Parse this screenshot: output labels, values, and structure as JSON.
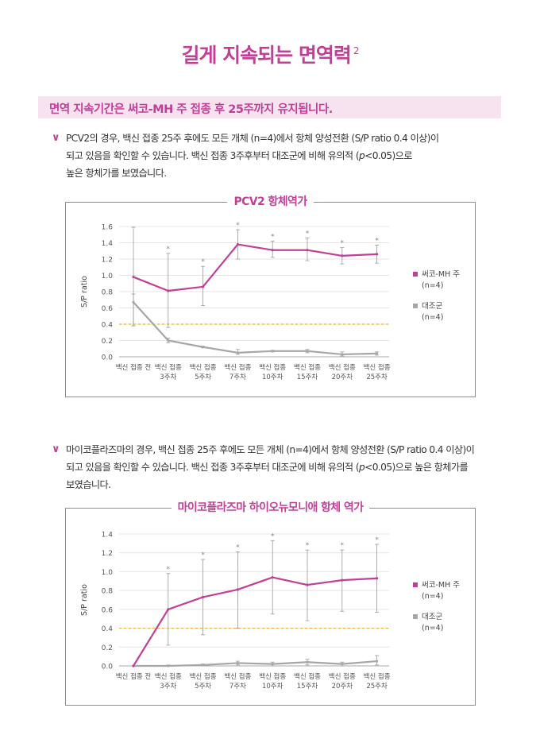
{
  "header": {
    "title": "길게 지속되는 면역력",
    "title_sup": "2"
  },
  "banner": {
    "text": "면역 지속기간은 써코-MH 주 접종 후 25주까지 유지됩니다."
  },
  "section1": {
    "mark": "∨",
    "lines": [
      "PCV2의 경우, 백신 접종 25주 후에도 모든 개체 (n=4)에서 항체 양성전환 (S/P ratio 0.4 이상)이",
      "되고 있음을 확인할 수 있습니다. 백신 접종 3주후부터 대조군에 비해 유의적 (",
      "<0.05)으로",
      "높은 항체가를 보였습니다."
    ],
    "p_italic": "p"
  },
  "section2": {
    "mark": "∨",
    "lines": [
      "마이코플라즈마의 경우, 백신 접종 25주 후에도 모든 개체 (n=4)에서 항체 양성전환 (S/P ratio 0.4 이상)이",
      "되고 있음을 확인할 수 있습니다. 백신 접종 3주후부터 대조군에 비해 유의적 (",
      "<0.05)으로 높은 항체가를",
      "보였습니다."
    ],
    "p_italic": "p"
  },
  "chart_data": [
    {
      "type": "line",
      "title": "PCV2 항체역가",
      "ylabel": "S/P ratio",
      "ylim": [
        0,
        1.6
      ],
      "yticks": [
        "0.0",
        "0.2",
        "0.4",
        "0.6",
        "0.8",
        "1.0",
        "1.2",
        "1.4",
        "1.6"
      ],
      "categories": [
        [
          "백신 접종 전"
        ],
        [
          "백신 접종",
          "3주차"
        ],
        [
          "백신 접종",
          "5주차"
        ],
        [
          "백신 접종",
          "7주차"
        ],
        [
          "백신 접종",
          "10주차"
        ],
        [
          "백신 접종",
          "15주차"
        ],
        [
          "백신 접종",
          "20주차"
        ],
        [
          "백신 접종",
          "25주차"
        ]
      ],
      "threshold": 0.4,
      "significance": [
        false,
        true,
        true,
        true,
        true,
        true,
        true,
        true
      ],
      "sig_mark": "*",
      "legend_position": "right",
      "series": [
        {
          "name": "써코-MH 주",
          "n": "(n=4)",
          "color": "#c23f98",
          "values": [
            0.98,
            0.81,
            0.86,
            1.38,
            1.31,
            1.31,
            1.24,
            1.26
          ],
          "err_low": [
            0.38,
            0.36,
            0.63,
            1.2,
            1.22,
            1.18,
            1.14,
            1.15
          ],
          "err_high": [
            1.59,
            1.27,
            1.11,
            1.56,
            1.42,
            1.46,
            1.34,
            1.37
          ]
        },
        {
          "name": "대조군",
          "n": "(n=4)",
          "color": "#a6a6a6",
          "values": [
            0.67,
            0.2,
            0.12,
            0.05,
            0.07,
            0.07,
            0.03,
            0.04
          ],
          "err_low": [
            0.38,
            0.17,
            0.11,
            0.03,
            0.06,
            0.05,
            0.01,
            0.02
          ],
          "err_high": [
            0.77,
            0.23,
            0.13,
            0.09,
            0.08,
            0.09,
            0.06,
            0.06
          ]
        }
      ]
    },
    {
      "type": "line",
      "title": "마이코플라즈마 하이오뉴모니애 항체 역가",
      "ylabel": "S/P ratio",
      "ylim": [
        0,
        1.4
      ],
      "yticks": [
        "0.0",
        "0.2",
        "0.4",
        "0.6",
        "0.8",
        "1.0",
        "1.2",
        "1.4"
      ],
      "categories": [
        [
          "백신 접종 전"
        ],
        [
          "백신 접종",
          "3주차"
        ],
        [
          "백신 접종",
          "5주차"
        ],
        [
          "백신 접종",
          "7주차"
        ],
        [
          "백신 접종",
          "10주차"
        ],
        [
          "백신 접종",
          "15주차"
        ],
        [
          "백신 접종",
          "20주차"
        ],
        [
          "백신 접종",
          "25주차"
        ]
      ],
      "threshold": 0.4,
      "significance": [
        false,
        true,
        true,
        true,
        true,
        true,
        true,
        true
      ],
      "sig_mark": "*",
      "legend_position": "right",
      "series": [
        {
          "name": "써코-MH 주",
          "n": "(n=4)",
          "color": "#c23f98",
          "values": [
            0.0,
            0.6,
            0.73,
            0.81,
            0.94,
            0.86,
            0.91,
            0.93
          ],
          "err_low": [
            0.0,
            0.22,
            0.33,
            0.4,
            0.55,
            0.48,
            0.58,
            0.57
          ],
          "err_high": [
            0.0,
            0.98,
            1.13,
            1.21,
            1.33,
            1.23,
            1.23,
            1.29
          ]
        },
        {
          "name": "대조군",
          "n": "(n=4)",
          "color": "#a6a6a6",
          "values": [
            0.0,
            0.0,
            0.01,
            0.03,
            0.02,
            0.04,
            0.02,
            0.05
          ],
          "err_low": [
            0.0,
            0.0,
            0.0,
            0.01,
            0.0,
            0.01,
            0.0,
            0.01
          ],
          "err_high": [
            0.0,
            0.01,
            0.02,
            0.05,
            0.04,
            0.07,
            0.04,
            0.11
          ]
        }
      ]
    }
  ]
}
